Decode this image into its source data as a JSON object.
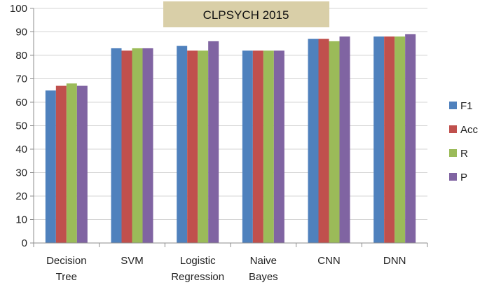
{
  "chart_data": {
    "type": "bar",
    "title": "CLPSYCH 2015",
    "xlabel": "",
    "ylabel": "",
    "categories": [
      [
        "Decision",
        "Tree"
      ],
      [
        "SVM"
      ],
      [
        "Logistic",
        "Regression"
      ],
      [
        "Naive",
        "Bayes"
      ],
      [
        "CNN"
      ],
      [
        "DNN"
      ]
    ],
    "series": [
      {
        "name": "F1",
        "color": "#4F81BD",
        "values": [
          65,
          83,
          84,
          82,
          87,
          88
        ]
      },
      {
        "name": "Acc",
        "color": "#C0504D",
        "values": [
          67,
          82,
          82,
          82,
          87,
          88
        ]
      },
      {
        "name": "R",
        "color": "#9BBB59",
        "values": [
          68,
          83,
          82,
          82,
          86,
          88
        ]
      },
      {
        "name": "P",
        "color": "#8064A2",
        "values": [
          67,
          83,
          86,
          82,
          88,
          89
        ]
      }
    ],
    "ylim": [
      0,
      100
    ],
    "yticks": [
      0,
      10,
      20,
      30,
      40,
      50,
      60,
      70,
      80,
      90,
      100
    ],
    "grid": true,
    "legend_position": "right",
    "title_box_color": "#D9CFA8"
  }
}
